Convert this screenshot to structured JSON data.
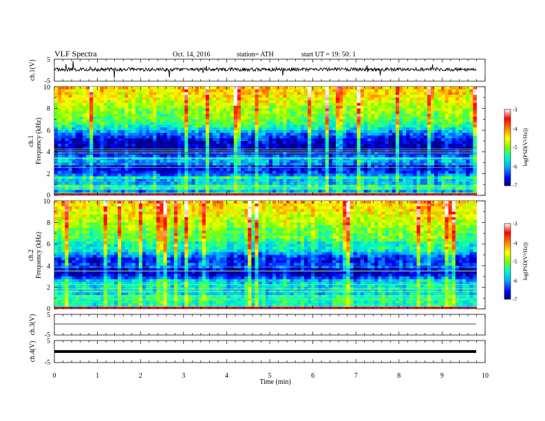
{
  "header": {
    "title": "VLF  Spectra",
    "date": "Oct. 14, 2016",
    "station": "station= ATH",
    "start": "start  UT  =   19: 50: 1"
  },
  "chart_data": {
    "type": "heatmap",
    "xlabel": "Time  (min)",
    "xlim": [
      0,
      10
    ],
    "xticks": [
      "0",
      "1",
      "2",
      "3",
      "4",
      "5",
      "6",
      "7",
      "8",
      "9",
      "10"
    ],
    "data_end_min": 9.8,
    "panels": [
      {
        "id": "ch1-wave",
        "type": "line",
        "ylabel": "ch.1(V)",
        "ylim": [
          -5,
          5
        ],
        "yticks": [
          "5",
          "-5"
        ],
        "amplitude": "noisy, about 1 V"
      },
      {
        "id": "ch1-spec",
        "type": "heatmap",
        "ylabel_top": "ch.1",
        "ylabel": "Frequency  (kHz)",
        "ylim": [
          0,
          10
        ],
        "yticks": [
          "0",
          "2",
          "4",
          "6",
          "8",
          "10"
        ],
        "colorbar_label": "log(PSD(V²/Hz))",
        "colorbar_range": [
          -7,
          -3
        ],
        "colorbar_ticks": [
          "-3",
          "-4",
          "-5",
          "-6",
          "-7"
        ],
        "profile": [
          [
            0,
            -4.3
          ],
          [
            0.3,
            -6.2
          ],
          [
            0.8,
            -5.2
          ],
          [
            1.2,
            -6.3
          ],
          [
            1.6,
            -5.4
          ],
          [
            2.0,
            -6.5
          ],
          [
            2.6,
            -6.6
          ],
          [
            3.3,
            -5.8
          ],
          [
            4.0,
            -6.9
          ],
          [
            5.0,
            -6.8
          ],
          [
            5.8,
            -6.1
          ],
          [
            6.3,
            -5.5
          ],
          [
            7.0,
            -5.1
          ],
          [
            8.0,
            -4.9
          ],
          [
            9.0,
            -4.5
          ],
          [
            10,
            -4.3
          ]
        ]
      },
      {
        "id": "ch2-spec",
        "type": "heatmap",
        "ylabel_top": "ch.2",
        "ylabel": "Frequency  (kHz)",
        "ylim": [
          0,
          10
        ],
        "yticks": [
          "0",
          "2",
          "4",
          "6",
          "8",
          "10"
        ],
        "colorbar_label": "log(PSD(V²/Hz))",
        "colorbar_range": [
          -7,
          -3
        ],
        "colorbar_ticks": [
          "-3",
          "-4",
          "-5",
          "-6",
          "-7"
        ],
        "profile": [
          [
            0,
            -4.9
          ],
          [
            0.4,
            -5.6
          ],
          [
            1.0,
            -5.3
          ],
          [
            1.5,
            -5.9
          ],
          [
            2.0,
            -5.6
          ],
          [
            2.6,
            -5.8
          ],
          [
            3.0,
            -6.6
          ],
          [
            3.5,
            -6.9
          ],
          [
            4.0,
            -6.3
          ],
          [
            4.5,
            -6.6
          ],
          [
            5.0,
            -6.2
          ],
          [
            5.5,
            -5.5
          ],
          [
            6.0,
            -5.6
          ],
          [
            6.5,
            -5.1
          ],
          [
            7.0,
            -5.1
          ],
          [
            8.0,
            -4.8
          ],
          [
            9.0,
            -4.5
          ],
          [
            10,
            -4.3
          ]
        ]
      },
      {
        "id": "ch3-wave",
        "type": "line",
        "ylabel": "ch.3(V)",
        "ylim": [
          -5,
          5
        ],
        "yticks": [
          "5",
          "-5"
        ],
        "amplitude": "flat near 0"
      },
      {
        "id": "ch4-wave",
        "type": "line",
        "ylabel": "ch.4(V)",
        "ylim": [
          -5,
          5
        ],
        "yticks": [
          "5",
          "-5"
        ],
        "amplitude": "thick constant line near 0"
      }
    ],
    "colors": {
      "cmap": [
        "#000080",
        "#0000ff",
        "#00b0ff",
        "#00ffc0",
        "#80ff00",
        "#ffff00",
        "#ff8000",
        "#ff0000",
        "#ffffff"
      ]
    }
  }
}
